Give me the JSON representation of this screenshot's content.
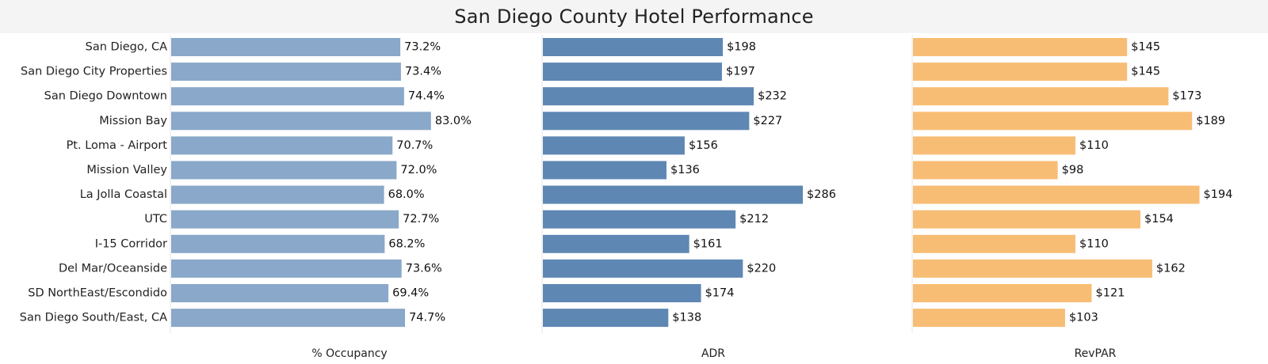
{
  "chart_data": {
    "type": "bar",
    "orientation": "horizontal",
    "title": "San Diego County Hotel Performance",
    "categories": [
      "San Diego, CA",
      "San Diego City Properties",
      "San Diego Downtown",
      "Mission Bay",
      "Pt. Loma - Airport",
      "Mission Valley",
      "La Jolla Coastal",
      "UTC",
      "I-15 Corridor",
      "Del Mar/Oceanside",
      "SD NorthEast/Escondido",
      "San Diego South/East, CA"
    ],
    "panels": [
      {
        "name": "% Occupancy",
        "color": "#8aa8c9",
        "values": [
          73.2,
          73.4,
          74.4,
          83.0,
          70.7,
          72.0,
          68.0,
          72.7,
          68.2,
          73.6,
          69.4,
          74.7
        ],
        "labels": [
          "73.2%",
          "73.4%",
          "74.4%",
          "83.0%",
          "70.7%",
          "72.0%",
          "68.0%",
          "72.7%",
          "68.2%",
          "73.6%",
          "69.4%",
          "74.7%"
        ],
        "max": 100
      },
      {
        "name": "ADR",
        "color": "#5f87b3",
        "values": [
          198,
          197,
          232,
          227,
          156,
          136,
          286,
          212,
          161,
          220,
          174,
          138
        ],
        "labels": [
          "$198",
          "$197",
          "$232",
          "$227",
          "$156",
          "$136",
          "$286",
          "$212",
          "$161",
          "$220",
          "$174",
          "$138"
        ],
        "max": 340
      },
      {
        "name": "RevPAR",
        "color": "#f8bd75",
        "values": [
          145,
          145,
          173,
          189,
          110,
          98,
          194,
          154,
          110,
          162,
          121,
          103
        ],
        "labels": [
          "$145",
          "$145",
          "$173",
          "$189",
          "$110",
          "$98",
          "$194",
          "$154",
          "$110",
          "$162",
          "$121",
          "$103"
        ],
        "max": 220
      }
    ],
    "grid": false,
    "legend": "none"
  }
}
